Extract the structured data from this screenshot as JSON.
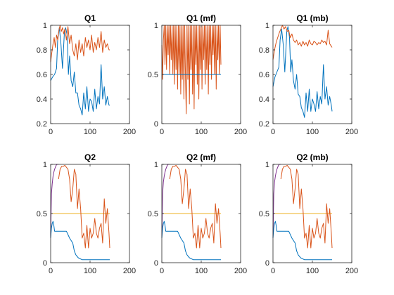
{
  "chart_data": [
    {
      "type": "line",
      "title": "Q1",
      "xlim": [
        0,
        200
      ],
      "ylim": [
        0.2,
        1
      ],
      "xticks": [
        "0",
        "100",
        "200"
      ],
      "yticks": [
        "0.2",
        "0.4",
        "0.6",
        "0.8",
        "1"
      ],
      "xtick_values": [
        0,
        100,
        200
      ],
      "ytick_values": [
        0.2,
        0.4,
        0.6,
        0.8,
        1
      ],
      "series": [
        {
          "color": "#0072BD",
          "x": [
            0,
            5,
            10,
            15,
            18,
            22,
            26,
            30,
            35,
            38,
            42,
            45,
            48,
            52,
            56,
            60,
            64,
            68,
            72,
            76,
            80,
            84,
            88,
            92,
            96,
            100,
            104,
            108,
            112,
            116,
            120,
            124,
            128,
            132,
            136,
            140,
            144,
            148,
            150
          ],
          "y": [
            0.55,
            0.58,
            0.6,
            0.65,
            0.9,
            0.98,
            0.85,
            0.65,
            0.95,
            0.98,
            0.92,
            0.6,
            0.75,
            0.55,
            0.5,
            0.62,
            0.45,
            0.45,
            0.35,
            0.32,
            0.27,
            0.45,
            0.32,
            0.5,
            0.3,
            0.4,
            0.38,
            0.3,
            0.48,
            0.32,
            0.42,
            0.36,
            0.68,
            0.4,
            0.5,
            0.35,
            0.42,
            0.35,
            0.35
          ]
        },
        {
          "color": "#D95319",
          "x": [
            0,
            3,
            6,
            9,
            12,
            15,
            18,
            21,
            24,
            27,
            30,
            33,
            36,
            40,
            44,
            48,
            52,
            56,
            60,
            64,
            68,
            72,
            76,
            80,
            84,
            88,
            92,
            96,
            100,
            104,
            108,
            112,
            116,
            120,
            124,
            128,
            132,
            136,
            140,
            144,
            148,
            150
          ],
          "y": [
            0.7,
            0.78,
            0.85,
            0.9,
            0.82,
            0.92,
            0.88,
            0.96,
            1,
            0.95,
            0.98,
            0.93,
            0.97,
            0.88,
            0.99,
            0.85,
            0.92,
            0.8,
            0.75,
            0.85,
            0.72,
            0.88,
            0.78,
            0.85,
            0.75,
            0.9,
            0.82,
            0.88,
            0.8,
            0.92,
            0.78,
            0.86,
            0.8,
            0.9,
            0.82,
            0.95,
            0.78,
            0.88,
            0.82,
            0.85,
            0.8,
            0.8
          ]
        }
      ]
    },
    {
      "type": "line",
      "title": "Q1 (mf)",
      "xlim": [
        0,
        200
      ],
      "ylim": [
        0,
        1
      ],
      "xticks": [
        "0",
        "100",
        "200"
      ],
      "yticks": [
        "0",
        "0.5",
        "1"
      ],
      "xtick_values": [
        0,
        100,
        200
      ],
      "ytick_values": [
        0,
        0.5,
        1
      ],
      "series": [
        {
          "color": "#D95319",
          "x": [
            0,
            2,
            4,
            6,
            8,
            10,
            12,
            14,
            16,
            18,
            20,
            22,
            24,
            26,
            28,
            30,
            32,
            34,
            36,
            38,
            40,
            42,
            44,
            46,
            48,
            50,
            52,
            54,
            56,
            58,
            60,
            62,
            64,
            66,
            68,
            70,
            72,
            74,
            76,
            78,
            80,
            82,
            84,
            86,
            88,
            90,
            92,
            94,
            96,
            98,
            100,
            102,
            104,
            106,
            108,
            110,
            112,
            114,
            116,
            118,
            120,
            122,
            124,
            126,
            128,
            130,
            132,
            134,
            136,
            138,
            140,
            142,
            144,
            146,
            148,
            150
          ],
          "y": [
            0.8,
            0.45,
            0.85,
            1,
            0.6,
            1,
            0.55,
            1,
            0.7,
            1,
            0.5,
            1,
            0.65,
            1,
            0.5,
            1,
            0.4,
            1,
            0.55,
            1,
            0.35,
            1,
            0.5,
            1,
            0.3,
            1,
            0.45,
            1,
            0.25,
            1,
            0.5,
            0.1,
            1,
            0.45,
            1,
            0.2,
            1,
            0.55,
            1,
            0.3,
            1,
            0.15,
            1,
            0.6,
            1,
            0.4,
            1,
            0.25,
            1,
            0.55,
            1,
            0.35,
            1,
            0.65,
            1,
            0.4,
            1,
            0.55,
            1,
            0.3,
            1,
            0.6,
            1,
            0.45,
            1,
            0.7,
            1,
            0.5,
            1,
            0.35,
            1,
            0.65,
            1,
            0.5,
            1,
            0.6
          ]
        },
        {
          "color": "#0072BD",
          "x": [
            0,
            150
          ],
          "y": [
            0.5,
            0.5
          ]
        }
      ]
    },
    {
      "type": "line",
      "title": "Q1 (mb)",
      "xlim": [
        0,
        200
      ],
      "ylim": [
        0.2,
        1
      ],
      "xticks": [
        "0",
        "100",
        "200"
      ],
      "yticks": [
        "0.2",
        "0.4",
        "0.6",
        "0.8",
        "1"
      ],
      "xtick_values": [
        0,
        100,
        200
      ],
      "ytick_values": [
        0.2,
        0.4,
        0.6,
        0.8,
        1
      ],
      "series": [
        {
          "color": "#0072BD",
          "x": [
            0,
            5,
            10,
            15,
            18,
            22,
            26,
            30,
            35,
            38,
            42,
            45,
            48,
            52,
            56,
            60,
            64,
            68,
            72,
            76,
            80,
            84,
            88,
            92,
            96,
            100,
            104,
            108,
            112,
            116,
            120,
            124,
            128,
            132,
            136,
            140,
            144,
            148,
            150
          ],
          "y": [
            0.5,
            0.58,
            0.62,
            0.66,
            0.88,
            0.97,
            0.84,
            0.62,
            0.95,
            0.99,
            0.9,
            0.62,
            0.72,
            0.55,
            0.48,
            0.6,
            0.44,
            0.42,
            0.33,
            0.3,
            0.25,
            0.45,
            0.3,
            0.48,
            0.3,
            0.4,
            0.36,
            0.3,
            0.46,
            0.32,
            0.42,
            0.36,
            0.68,
            0.4,
            0.5,
            0.35,
            0.42,
            0.35,
            0.3
          ]
        },
        {
          "color": "#D95319",
          "x": [
            0,
            4,
            8,
            12,
            16,
            20,
            24,
            28,
            32,
            36,
            40,
            44,
            48,
            52,
            56,
            60,
            64,
            68,
            72,
            76,
            80,
            84,
            88,
            92,
            96,
            100,
            104,
            108,
            112,
            116,
            120,
            124,
            128,
            132,
            136,
            140,
            144,
            148,
            150
          ],
          "y": [
            0.72,
            0.8,
            0.86,
            0.9,
            0.94,
            0.97,
            1,
            0.97,
            0.99,
            0.95,
            0.96,
            0.9,
            0.93,
            0.88,
            0.86,
            0.88,
            0.84,
            0.86,
            0.83,
            0.87,
            0.84,
            0.86,
            0.83,
            0.88,
            0.85,
            0.84,
            0.87,
            0.86,
            0.84,
            0.86,
            0.85,
            0.88,
            0.86,
            0.87,
            0.84,
            0.96,
            0.85,
            0.83,
            0.82
          ]
        }
      ]
    },
    {
      "type": "line",
      "title": "Q2",
      "xlim": [
        0,
        200
      ],
      "ylim": [
        0,
        1
      ],
      "xticks": [
        "0",
        "100",
        "200"
      ],
      "yticks": [
        "0",
        "0.5",
        "1"
      ],
      "xtick_values": [
        0,
        100,
        200
      ],
      "ytick_values": [
        0,
        0.5,
        1
      ],
      "series": [
        {
          "color": "#7E2F8E",
          "x": [
            0,
            2,
            4,
            6,
            8,
            10,
            12,
            14,
            16,
            20
          ],
          "y": [
            0.25,
            0.7,
            0.8,
            0.88,
            0.92,
            0.95,
            0.97,
            0.99,
            1,
            1
          ]
        },
        {
          "color": "#EDB120",
          "x": [
            0,
            150
          ],
          "y": [
            0.5,
            0.5
          ]
        },
        {
          "color": "#0072BD",
          "x": [
            0,
            2,
            4,
            6,
            8,
            10,
            40,
            48,
            56,
            60,
            64,
            70,
            80,
            90,
            100,
            150
          ],
          "y": [
            0.25,
            0.35,
            0.4,
            0.42,
            0.38,
            0.32,
            0.32,
            0.25,
            0.2,
            0.12,
            0.08,
            0.05,
            0.03,
            0.03,
            0.03,
            0.03
          ]
        },
        {
          "color": "#D95319",
          "x": [
            20,
            24,
            28,
            32,
            36,
            40,
            44,
            48,
            52,
            56,
            60,
            64,
            68,
            72,
            76,
            80,
            84,
            88,
            92,
            96,
            100,
            104,
            108,
            112,
            116,
            120,
            124,
            128,
            132,
            136,
            140,
            144,
            148,
            150
          ],
          "y": [
            0.85,
            0.95,
            0.98,
            0.98,
            0.99,
            0.97,
            0.95,
            0.85,
            0.62,
            0.75,
            0.95,
            0.9,
            0.55,
            0.75,
            0.55,
            0.25,
            0.3,
            0.15,
            0.38,
            0.15,
            0.35,
            0.25,
            0.3,
            0.45,
            0.3,
            0.25,
            0.35,
            0.4,
            0.2,
            0.65,
            0.4,
            0.55,
            0.3,
            0.15
          ]
        }
      ]
    },
    {
      "type": "line",
      "title": "Q2 (mf)",
      "xlim": [
        0,
        200
      ],
      "ylim": [
        0,
        1
      ],
      "xticks": [
        "0",
        "100",
        "200"
      ],
      "yticks": [
        "0",
        "0.5",
        "1"
      ],
      "xtick_values": [
        0,
        100,
        200
      ],
      "ytick_values": [
        0,
        0.5,
        1
      ],
      "series": [
        {
          "color": "#7E2F8E",
          "x": [
            0,
            2,
            4,
            6,
            8,
            10,
            12,
            14,
            16,
            20
          ],
          "y": [
            0.25,
            0.7,
            0.82,
            0.88,
            0.92,
            0.95,
            0.97,
            0.99,
            1,
            1
          ]
        },
        {
          "color": "#EDB120",
          "x": [
            0,
            150
          ],
          "y": [
            0.5,
            0.5
          ]
        },
        {
          "color": "#0072BD",
          "x": [
            0,
            2,
            4,
            6,
            8,
            10,
            40,
            48,
            56,
            60,
            64,
            70,
            80,
            90,
            100,
            150
          ],
          "y": [
            0.25,
            0.35,
            0.4,
            0.42,
            0.38,
            0.32,
            0.32,
            0.25,
            0.2,
            0.12,
            0.08,
            0.05,
            0.03,
            0.03,
            0.03,
            0.03
          ]
        },
        {
          "color": "#D95319",
          "x": [
            20,
            24,
            28,
            32,
            36,
            40,
            44,
            48,
            52,
            56,
            60,
            64,
            68,
            72,
            76,
            80,
            84,
            88,
            92,
            96,
            100,
            104,
            108,
            112,
            116,
            120,
            124,
            128,
            132,
            136,
            140,
            144,
            148,
            150
          ],
          "y": [
            0.85,
            0.95,
            0.98,
            0.98,
            0.99,
            0.97,
            0.95,
            0.85,
            0.6,
            0.75,
            0.95,
            0.9,
            0.55,
            0.75,
            0.55,
            0.25,
            0.3,
            0.15,
            0.38,
            0.15,
            0.35,
            0.25,
            0.3,
            0.45,
            0.3,
            0.25,
            0.35,
            0.4,
            0.2,
            0.6,
            0.4,
            0.55,
            0.3,
            0.15
          ]
        }
      ]
    },
    {
      "type": "line",
      "title": "Q2 (mb)",
      "xlim": [
        0,
        200
      ],
      "ylim": [
        0,
        1
      ],
      "xticks": [
        "0",
        "100",
        "200"
      ],
      "yticks": [
        "0",
        "0.5",
        "1"
      ],
      "xtick_values": [
        0,
        100,
        200
      ],
      "ytick_values": [
        0,
        0.5,
        1
      ],
      "series": [
        {
          "color": "#7E2F8E",
          "x": [
            0,
            2,
            4,
            6,
            8,
            10,
            12,
            14,
            16,
            20
          ],
          "y": [
            0.25,
            0.7,
            0.82,
            0.88,
            0.92,
            0.95,
            0.97,
            0.99,
            1,
            1
          ]
        },
        {
          "color": "#EDB120",
          "x": [
            0,
            150
          ],
          "y": [
            0.5,
            0.5
          ]
        },
        {
          "color": "#0072BD",
          "x": [
            0,
            2,
            4,
            6,
            8,
            10,
            40,
            48,
            56,
            60,
            64,
            70,
            80,
            90,
            100,
            150
          ],
          "y": [
            0.25,
            0.35,
            0.4,
            0.42,
            0.38,
            0.32,
            0.32,
            0.25,
            0.2,
            0.12,
            0.08,
            0.05,
            0.03,
            0.03,
            0.03,
            0.03
          ]
        },
        {
          "color": "#D95319",
          "x": [
            20,
            24,
            28,
            32,
            36,
            40,
            44,
            48,
            52,
            56,
            60,
            64,
            68,
            72,
            76,
            80,
            84,
            88,
            92,
            96,
            100,
            104,
            108,
            112,
            116,
            120,
            124,
            128,
            132,
            136,
            140,
            144,
            148,
            150
          ],
          "y": [
            0.85,
            0.95,
            0.98,
            0.98,
            0.99,
            0.97,
            0.95,
            0.85,
            0.6,
            0.75,
            0.95,
            0.9,
            0.55,
            0.75,
            0.55,
            0.25,
            0.3,
            0.15,
            0.38,
            0.15,
            0.35,
            0.25,
            0.3,
            0.45,
            0.3,
            0.25,
            0.35,
            0.4,
            0.2,
            0.6,
            0.4,
            0.55,
            0.3,
            0.15
          ]
        }
      ]
    }
  ]
}
